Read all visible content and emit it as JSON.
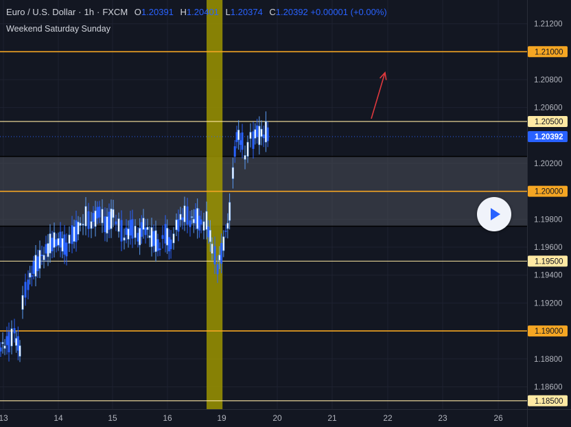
{
  "header": {
    "symbol": "Euro / U.S. Dollar",
    "interval": "1h",
    "exchange": "FXCM",
    "open_label": "O",
    "open": "1.20391",
    "high_label": "H",
    "high": "1.20401",
    "low_label": "L",
    "low": "1.20374",
    "close_label": "C",
    "close": "1.20392",
    "change": "+0.00001 (+0.00%)",
    "subtitle": "Weekend Saturday Sunday"
  },
  "colors": {
    "background": "#131722",
    "candle": "#2962ff",
    "candle_light": "#5b9cf6",
    "grid": "#1e2230",
    "level_orange": "#f5a623",
    "level_yellow": "#ffe9a3",
    "zone": "#4a4e5a",
    "weekend_band": "#9c9400",
    "arrow": "#e0393e",
    "price_badge": "#2962ff",
    "axis_text": "#b2b5be"
  },
  "chart_data": {
    "type": "candlestick",
    "x_ticks": [
      "13",
      "14",
      "15",
      "16",
      "19",
      "20",
      "21",
      "22",
      "23",
      "26"
    ],
    "y_ticks": [
      "1.21200",
      "1.20800",
      "1.20600",
      "1.20200",
      "1.19800",
      "1.19600",
      "1.19400",
      "1.19200",
      "1.18800",
      "1.18600"
    ],
    "ylim": [
      1.1844,
      1.2137
    ],
    "last_price": 1.20392,
    "last_price_label": "1.20392",
    "horizontal_levels": [
      {
        "value": 1.21,
        "label": "1.21000",
        "style": "orange"
      },
      {
        "value": 1.205,
        "label": "1.20500",
        "style": "yellow"
      },
      {
        "value": 1.2,
        "label": "1.20000",
        "style": "orange"
      },
      {
        "value": 1.195,
        "label": "1.19500",
        "style": "yellow"
      },
      {
        "value": 1.19,
        "label": "1.19000",
        "style": "orange"
      },
      {
        "value": 1.185,
        "label": "1.18500",
        "style": "yellow"
      }
    ],
    "zone": {
      "top": 1.2025,
      "bottom": 1.1975
    },
    "weekend_highlight": {
      "from_day": 16.7,
      "to_day": 16.99
    },
    "arrow": {
      "from": [
        19.7,
        1.2052
      ],
      "to": [
        19.95,
        1.2085
      ]
    },
    "close_series": [
      [
        12.95,
        1.1888
      ],
      [
        13.1,
        1.1892
      ],
      [
        13.2,
        1.1898
      ],
      [
        13.3,
        1.1885
      ],
      [
        13.35,
        1.1922
      ],
      [
        13.45,
        1.1935
      ],
      [
        13.55,
        1.1945
      ],
      [
        13.7,
        1.1952
      ],
      [
        13.85,
        1.1962
      ],
      [
        14.0,
        1.1965
      ],
      [
        14.15,
        1.196
      ],
      [
        14.25,
        1.1968
      ],
      [
        14.4,
        1.1975
      ],
      [
        14.5,
        1.1982
      ],
      [
        14.6,
        1.1978
      ],
      [
        14.75,
        1.1986
      ],
      [
        14.85,
        1.1975
      ],
      [
        15.0,
        1.1982
      ],
      [
        15.1,
        1.1976
      ],
      [
        15.2,
        1.1968
      ],
      [
        15.35,
        1.1974
      ],
      [
        15.45,
        1.1966
      ],
      [
        15.55,
        1.1975
      ],
      [
        15.7,
        1.1968
      ],
      [
        15.85,
        1.196
      ],
      [
        15.95,
        1.197
      ],
      [
        16.05,
        1.196
      ],
      [
        16.15,
        1.1975
      ],
      [
        16.3,
        1.1985
      ],
      [
        16.4,
        1.1979
      ],
      [
        16.5,
        1.1982
      ],
      [
        16.6,
        1.1976
      ],
      [
        16.7,
        1.1978
      ],
      [
        16.8,
        1.196
      ],
      [
        16.9,
        1.1946
      ],
      [
        16.97,
        1.1955
      ],
      [
        17.05,
        1.197
      ],
      [
        17.12,
        1.1985
      ],
      [
        17.18,
        1.2015
      ],
      [
        17.25,
        1.204
      ],
      [
        17.35,
        1.2035
      ],
      [
        17.4,
        1.2022
      ],
      [
        17.45,
        1.203
      ],
      [
        17.5,
        1.2042
      ],
      [
        17.55,
        1.2038
      ],
      [
        17.62,
        1.2042
      ],
      [
        17.7,
        1.204
      ],
      [
        17.78,
        1.2043
      ],
      [
        17.85,
        1.2039
      ]
    ]
  }
}
